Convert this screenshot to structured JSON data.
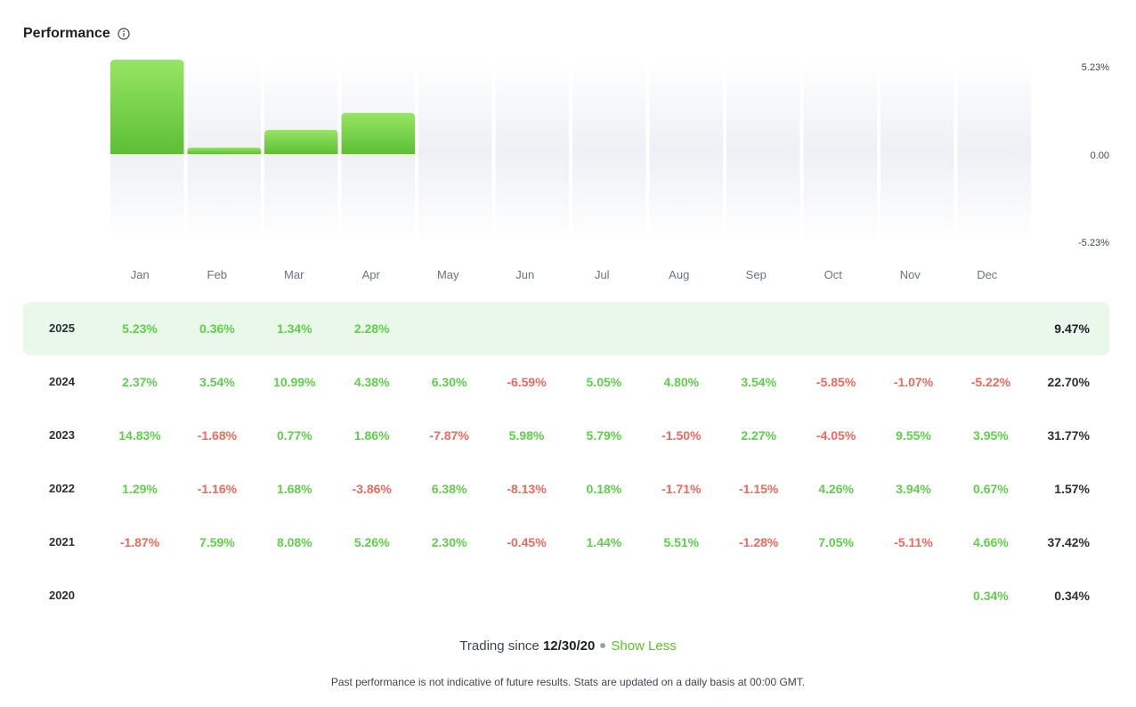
{
  "header": {
    "title": "Performance",
    "info_icon": "info-circle-icon"
  },
  "colors": {
    "positive": "#5fcf4b",
    "negative": "#ee6a5f",
    "bar_top": "#97e564",
    "bar_bottom": "#5cbf35",
    "current_row_bg": "#eaf8ea",
    "link": "#5fbf2b"
  },
  "chart_data": {
    "type": "bar",
    "categories": [
      "Jan",
      "Feb",
      "Mar",
      "Apr",
      "May",
      "Jun",
      "Jul",
      "Aug",
      "Sep",
      "Oct",
      "Nov",
      "Dec"
    ],
    "values": [
      5.23,
      0.36,
      1.34,
      2.28,
      null,
      null,
      null,
      null,
      null,
      null,
      null,
      null
    ],
    "ylim": [
      -5.23,
      5.23
    ],
    "y_tick_labels": [
      "5.23%",
      "0.00",
      "-5.23%"
    ],
    "y_axis_side": "right",
    "grid": false
  },
  "table": {
    "rows": [
      {
        "year": "2025",
        "current": true,
        "months": [
          "5.23%",
          "0.36%",
          "1.34%",
          "2.28%",
          "",
          "",
          "",
          "",
          "",
          "",
          "",
          ""
        ],
        "total": "9.47%"
      },
      {
        "year": "2024",
        "current": false,
        "months": [
          "2.37%",
          "3.54%",
          "10.99%",
          "4.38%",
          "6.30%",
          "-6.59%",
          "5.05%",
          "4.80%",
          "3.54%",
          "-5.85%",
          "-1.07%",
          "-5.22%"
        ],
        "total": "22.70%"
      },
      {
        "year": "2023",
        "current": false,
        "months": [
          "14.83%",
          "-1.68%",
          "0.77%",
          "1.86%",
          "-7.87%",
          "5.98%",
          "5.79%",
          "-1.50%",
          "2.27%",
          "-4.05%",
          "9.55%",
          "3.95%"
        ],
        "total": "31.77%"
      },
      {
        "year": "2022",
        "current": false,
        "months": [
          "1.29%",
          "-1.16%",
          "1.68%",
          "-3.86%",
          "6.38%",
          "-8.13%",
          "0.18%",
          "-1.71%",
          "-1.15%",
          "4.26%",
          "3.94%",
          "0.67%"
        ],
        "total": "1.57%"
      },
      {
        "year": "2021",
        "current": false,
        "months": [
          "-1.87%",
          "7.59%",
          "8.08%",
          "5.26%",
          "2.30%",
          "-0.45%",
          "1.44%",
          "5.51%",
          "-1.28%",
          "7.05%",
          "-5.11%",
          "4.66%"
        ],
        "total": "37.42%"
      },
      {
        "year": "2020",
        "current": false,
        "months": [
          "",
          "",
          "",
          "",
          "",
          "",
          "",
          "",
          "",
          "",
          "",
          "0.34%"
        ],
        "total": "0.34%"
      }
    ]
  },
  "footer": {
    "trading_since_label": "Trading since",
    "trading_since_date": "12/30/20",
    "show_less": "Show Less",
    "disclaimer": "Past performance is not indicative of future results. Stats are updated on a daily basis at 00:00 GMT."
  }
}
